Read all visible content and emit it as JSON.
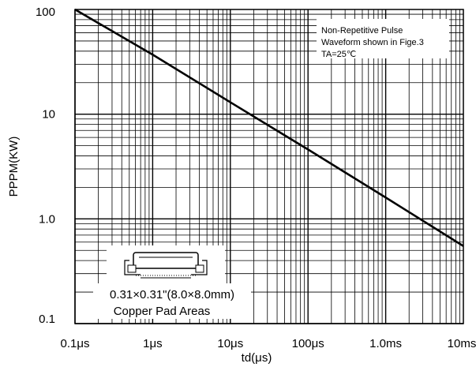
{
  "chart_data": {
    "type": "line",
    "xlabel": "td(μs)",
    "ylabel": "PPPM(KW)",
    "x_scale": "log",
    "y_scale": "log",
    "xlim": [
      0.1,
      10000
    ],
    "ylim": [
      0.1,
      100
    ],
    "grid": true,
    "x_ticks": [
      {
        "value": 0.1,
        "label": "0.1μs"
      },
      {
        "value": 1,
        "label": "1μs"
      },
      {
        "value": 10,
        "label": "10μs"
      },
      {
        "value": 100,
        "label": "100μs"
      },
      {
        "value": 1000,
        "label": "1.0ms"
      },
      {
        "value": 10000,
        "label": "10ms"
      }
    ],
    "y_ticks": [
      {
        "value": 0.1,
        "label": "0.1"
      },
      {
        "value": 1,
        "label": "1.0"
      },
      {
        "value": 10,
        "label": "10"
      },
      {
        "value": 100,
        "label": "100"
      }
    ],
    "series": [
      {
        "points": [
          {
            "x": 0.1,
            "y": 100
          },
          {
            "x": 1,
            "y": 37
          },
          {
            "x": 10,
            "y": 13
          },
          {
            "x": 100,
            "y": 4.6
          },
          {
            "x": 1000,
            "y": 1.6
          },
          {
            "x": 10000,
            "y": 0.55
          }
        ]
      }
    ],
    "annotations": {
      "note_lines": [
        "Non-Repetitive Pulse",
        "Waveform shown in Fige.3",
        "TA=25℃"
      ],
      "pad_size": "0.31×0.31\"(8.0×8.0mm)",
      "pad_caption": "Copper Pad Areas"
    },
    "colors": {
      "line": "#000000",
      "grid": "#000000",
      "background": "#ffffff"
    }
  }
}
